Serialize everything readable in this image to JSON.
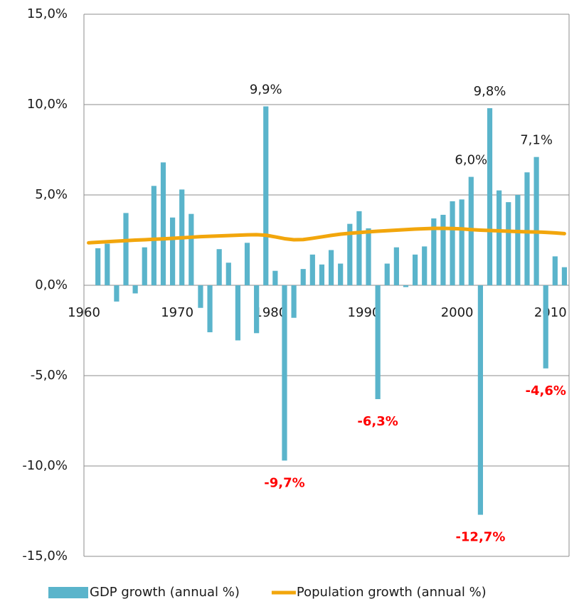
{
  "chart_data": {
    "type": "bar+line",
    "categories": [
      "1960",
      null,
      null,
      null,
      null,
      null,
      null,
      null,
      null,
      null,
      "1970",
      null,
      null,
      null,
      null,
      null,
      null,
      null,
      null,
      null,
      "1980",
      null,
      null,
      null,
      null,
      null,
      null,
      null,
      null,
      null,
      "1990",
      null,
      null,
      null,
      null,
      null,
      null,
      null,
      null,
      null,
      "2000",
      null,
      null,
      null,
      null,
      null,
      null,
      null,
      null,
      null,
      "2010",
      null
    ],
    "series": [
      {
        "name": "GDP growth (annual %)",
        "type": "bar",
        "color": "#5ab4cb",
        "values": [
          null,
          2.05,
          2.3,
          -0.9,
          4.0,
          -0.45,
          2.1,
          5.5,
          6.8,
          3.75,
          5.3,
          3.95,
          -1.25,
          -2.6,
          2.0,
          1.25,
          -3.05,
          2.35,
          -2.65,
          9.9,
          0.8,
          -9.7,
          -1.8,
          0.9,
          1.7,
          1.15,
          1.95,
          1.2,
          3.4,
          4.1,
          3.15,
          -6.3,
          1.2,
          2.1,
          -0.1,
          1.7,
          2.15,
          3.7,
          3.9,
          4.65,
          4.75,
          6.0,
          -12.7,
          9.8,
          5.25,
          4.6,
          5.0,
          6.25,
          7.1,
          -4.6,
          1.6,
          1.0
        ],
        "value_labels": [
          null,
          null,
          null,
          null,
          null,
          null,
          null,
          null,
          null,
          null,
          null,
          null,
          null,
          null,
          null,
          null,
          null,
          null,
          null,
          "9,9%",
          null,
          "-9,7%",
          null,
          null,
          null,
          null,
          null,
          null,
          null,
          null,
          null,
          "-6,3%",
          null,
          null,
          null,
          null,
          null,
          null,
          null,
          null,
          null,
          "6,0%",
          "-12,7%",
          "9,8%",
          null,
          null,
          null,
          null,
          "7,1%",
          "-4,6%",
          null,
          null
        ]
      },
      {
        "name": "Population growth (annual %)",
        "type": "line",
        "color": "#f2a60c",
        "values": [
          2.35,
          2.38,
          2.41,
          2.44,
          2.47,
          2.5,
          2.52,
          2.55,
          2.57,
          2.6,
          2.63,
          2.66,
          2.69,
          2.71,
          2.73,
          2.75,
          2.77,
          2.79,
          2.8,
          2.77,
          2.68,
          2.58,
          2.52,
          2.53,
          2.6,
          2.68,
          2.76,
          2.83,
          2.88,
          2.92,
          2.96,
          2.99,
          3.02,
          3.05,
          3.08,
          3.11,
          3.13,
          3.15,
          3.15,
          3.14,
          3.12,
          3.08,
          3.05,
          3.03,
          3.01,
          2.99,
          2.97,
          2.96,
          2.95,
          2.93,
          2.9,
          2.86
        ]
      }
    ],
    "ylim": [
      -15,
      15
    ],
    "yticks": [
      {
        "value": -15,
        "label": "-15,0%"
      },
      {
        "value": -10,
        "label": "-10,0%"
      },
      {
        "value": -5,
        "label": "-5,0%"
      },
      {
        "value": 0,
        "label": "0,0%"
      },
      {
        "value": 5,
        "label": "5,0%"
      },
      {
        "value": 10,
        "label": "10,0%"
      },
      {
        "value": 15,
        "label": "15,0%"
      }
    ],
    "grid": true,
    "negative_label_color": "#ff0000",
    "legend": "bottom"
  }
}
